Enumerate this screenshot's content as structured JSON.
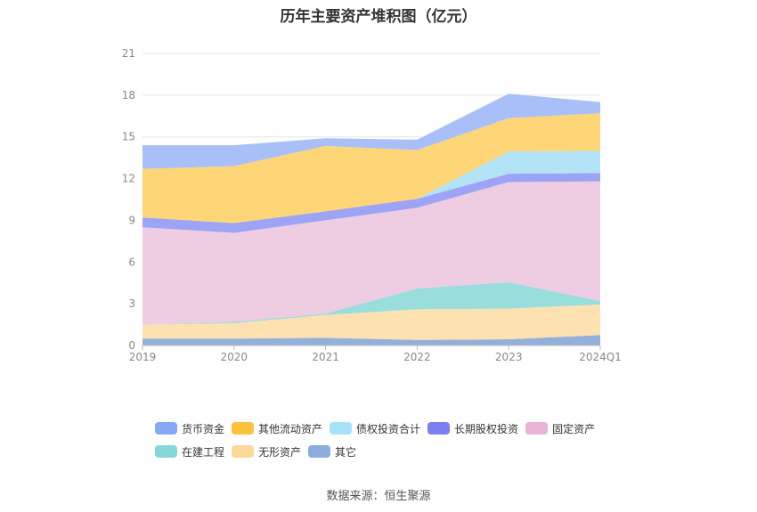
{
  "title": "历年主要资产堆积图（亿元）",
  "source": "数据来源：恒生聚源",
  "chart_data": {
    "type": "area",
    "stacked": true,
    "title": "历年主要资产堆积图（亿元）",
    "x": [
      "2019",
      "2020",
      "2021",
      "2022",
      "2023",
      "2024Q1"
    ],
    "ylim": [
      0,
      21
    ],
    "yticks": [
      0,
      3,
      6,
      9,
      12,
      15,
      18,
      21
    ],
    "grid": true,
    "legend_position": "bottom",
    "series": [
      {
        "name": "其它",
        "color": "#93b0da",
        "values": [
          0.5,
          0.5,
          0.55,
          0.4,
          0.45,
          0.75
        ]
      },
      {
        "name": "无形资产",
        "color": "#fde1b0",
        "values": [
          1.0,
          1.1,
          1.65,
          2.2,
          2.2,
          2.2
        ]
      },
      {
        "name": "在建工程",
        "color": "#99dddd",
        "values": [
          0.0,
          0.1,
          0.1,
          1.5,
          1.9,
          0.25
        ]
      },
      {
        "name": "固定资产",
        "color": "#eecde3",
        "values": [
          7.0,
          6.4,
          6.7,
          5.8,
          7.2,
          8.6
        ]
      },
      {
        "name": "长期股权投资",
        "color": "#9da3f5",
        "values": [
          0.7,
          0.7,
          0.65,
          0.65,
          0.6,
          0.6
        ]
      },
      {
        "name": "债权投资合计",
        "color": "#b3e3f7",
        "values": [
          0.0,
          0.0,
          0.0,
          0.0,
          1.6,
          1.6
        ]
      },
      {
        "name": "其他流动资产",
        "color": "#fed678",
        "values": [
          3.5,
          4.1,
          4.7,
          3.5,
          2.4,
          2.7
        ]
      },
      {
        "name": "货币资金",
        "color": "#a8bff8",
        "values": [
          1.7,
          1.5,
          0.55,
          0.75,
          1.75,
          0.8
        ]
      }
    ],
    "legend_order": [
      "货币资金",
      "其他流动资产",
      "债权投资合计",
      "长期股权投资",
      "固定资产",
      "在建工程",
      "无形资产",
      "其它"
    ],
    "legend_colors": {
      "货币资金": "#86a8f5",
      "其他流动资产": "#fdc23c",
      "债权投资合计": "#a6e3fa",
      "长期股权投资": "#7b7ff0",
      "固定资产": "#e8b4d7",
      "在建工程": "#86d8d8",
      "无形资产": "#fdd89a",
      "其它": "#8aaedb"
    }
  }
}
